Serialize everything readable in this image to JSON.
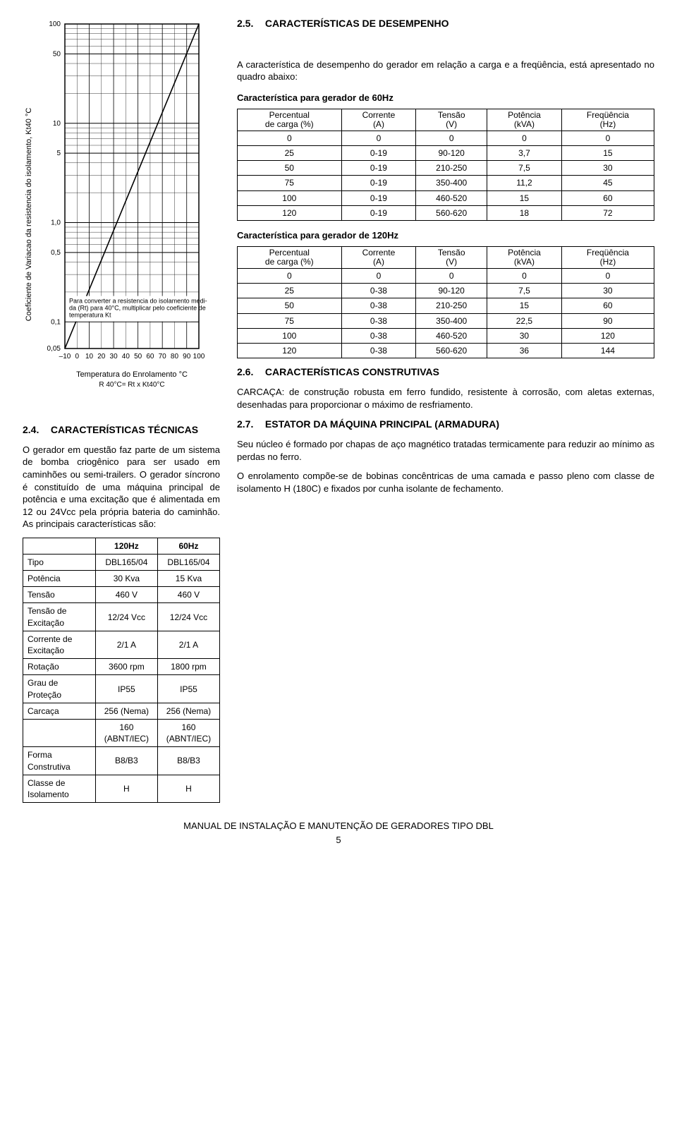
{
  "chart": {
    "y_axis_label": "Coeficiente de Variacao da resistencia do isolamento, Kt40 °C",
    "x_axis_label": "Temperatura do Enrolamento °C",
    "formula_label": "R 40°C= Rt x Kt40°C",
    "caption": "Para converter a resistencia do isolamento medi-\nda (Rt) para 40°C, multiplicar pelo coeficiente de\ntemperatura Kt",
    "y_ticks": [
      "100",
      "50",
      "10",
      "5",
      "1,0",
      "0,5",
      "0,1",
      "0,05"
    ],
    "y_positions": [
      0.0,
      0.092,
      0.306,
      0.398,
      0.612,
      0.704,
      0.918,
      1.0
    ],
    "x_ticks": [
      "–10",
      "0",
      "10",
      "20",
      "30",
      "40",
      "50",
      "60",
      "70",
      "80",
      "90",
      "100"
    ],
    "diag_x1": 0.0,
    "diag_y1": 0.47,
    "diag_x2": 1.0,
    "diag_y2": 0.854,
    "axis_color": "#000000",
    "grid_color": "#000000",
    "background": "#ffffff",
    "minor_per_decade": 10
  },
  "s25": {
    "num": "2.5.",
    "title": "CARACTERÍSTICAS DE DESEMPENHO",
    "intro": "A característica de desempenho do gerador em relação a carga e a freqüência, está apresentado no quadro abaixo:",
    "tbl60_title": "Característica para gerador de 60Hz",
    "tbl120_title": "Característica para gerador de 120Hz",
    "headers": {
      "pct1": "Percentual",
      "pct2": "de carga (%)",
      "cur1": "Corrente",
      "cur2": "(A)",
      "v1": "Tensão",
      "v2": "(V)",
      "p1": "Potência",
      "p2": "(kVA)",
      "f1": "Freqüência",
      "f2": "(Hz)"
    },
    "tbl60": [
      [
        "0",
        "0",
        "0",
        "0",
        "0"
      ],
      [
        "25",
        "0-19",
        "90-120",
        "3,7",
        "15"
      ],
      [
        "50",
        "0-19",
        "210-250",
        "7,5",
        "30"
      ],
      [
        "75",
        "0-19",
        "350-400",
        "11,2",
        "45"
      ],
      [
        "100",
        "0-19",
        "460-520",
        "15",
        "60"
      ],
      [
        "120",
        "0-19",
        "560-620",
        "18",
        "72"
      ]
    ],
    "tbl120": [
      [
        "0",
        "0",
        "0",
        "0",
        "0"
      ],
      [
        "25",
        "0-38",
        "90-120",
        "7,5",
        "30"
      ],
      [
        "50",
        "0-38",
        "210-250",
        "15",
        "60"
      ],
      [
        "75",
        "0-38",
        "350-400",
        "22,5",
        "90"
      ],
      [
        "100",
        "0-38",
        "460-520",
        "30",
        "120"
      ],
      [
        "120",
        "0-38",
        "560-620",
        "36",
        "144"
      ]
    ]
  },
  "s24": {
    "num": "2.4.",
    "title": "CARACTERÍSTICAS TÉCNICAS",
    "para": "O gerador em questão faz parte de um sistema de bomba criogênico para ser usado em caminhões ou semi-trailers. O gerador síncrono é constituído de uma máquina principal de potência e uma excitação que é alimentada em 12 ou 24Vcc pela própria bateria do caminhão. As principais características são:",
    "col1": "120Hz",
    "col2": "60Hz",
    "rows": [
      {
        "label": "Tipo",
        "a": "DBL165/04",
        "b": "DBL165/04"
      },
      {
        "label": "Potência",
        "a": "30 Kva",
        "b": "15 Kva"
      },
      {
        "label": "Tensão",
        "a": "460 V",
        "b": "460 V"
      },
      {
        "label": "Tensão de Excitação",
        "a": "12/24 Vcc",
        "b": "12/24 Vcc"
      },
      {
        "label": "Corrente de Excitação",
        "a": "2/1 A",
        "b": "2/1 A"
      },
      {
        "label": "Rotação",
        "a": "3600 rpm",
        "b": "1800 rpm"
      },
      {
        "label": "Grau de Proteção",
        "a": "IP55",
        "b": "IP55"
      },
      {
        "label": "Carcaça",
        "a": "256 (Nema)",
        "b": "256 (Nema)"
      },
      {
        "label": "",
        "a": "160 (ABNT/IEC)",
        "b": "160 (ABNT/IEC)"
      },
      {
        "label": "Forma Construtiva",
        "a": "B8/B3",
        "b": "B8/B3"
      },
      {
        "label": "Classe de Isolamento",
        "a": "H",
        "b": "H"
      }
    ]
  },
  "s26": {
    "num": "2.6.",
    "title": "CARACTERÍSTICAS CONSTRUTIVAS",
    "para": "CARCAÇA: de construção robusta em ferro fundido, resistente à corrosão, com aletas externas, desenhadas para proporcionar o máximo de resfriamento."
  },
  "s27": {
    "num": "2.7.",
    "title": "ESTATOR DA MÁQUINA PRINCIPAL (ARMADURA)",
    "para1": "Seu núcleo é formado por chapas de aço magnético tratadas termicamente para reduzir ao mínimo as perdas no ferro.",
    "para2": "O enrolamento compõe-se de bobinas concêntricas de uma camada e passo pleno com classe de isolamento H (180C) e fixados por cunha isolante de fechamento."
  },
  "footer": {
    "text": "MANUAL DE INSTALAÇÃO E MANUTENÇÃO DE GERADORES TIPO DBL",
    "page": "5"
  }
}
